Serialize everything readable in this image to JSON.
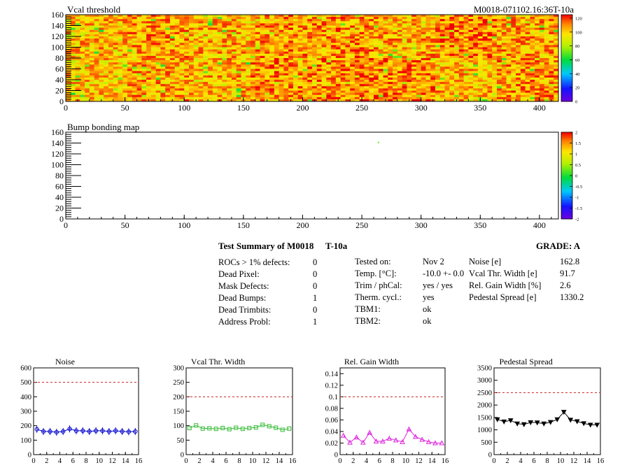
{
  "header": {
    "module_id": "M0018-071102.16:36T-10a"
  },
  "chart_data": [
    {
      "type": "heatmap",
      "title": "Vcal threshold",
      "xlim": [
        0,
        416
      ],
      "ylim": [
        0,
        160
      ],
      "x_ticks": [
        "0",
        "50",
        "100",
        "150",
        "200",
        "250",
        "300",
        "350",
        "400"
      ],
      "y_ticks": [
        "0",
        "20",
        "40",
        "60",
        "80",
        "100",
        "120",
        "140",
        "160"
      ],
      "colorbar_ticks": [
        "0",
        "20",
        "40",
        "60",
        "80",
        "100",
        "120"
      ],
      "z_range": [
        0,
        125
      ],
      "roc_grid": {
        "columns": 8,
        "rows": 2,
        "roc_width": 52,
        "roc_height": 80
      },
      "roc_mean_levels": [
        [
          101,
          106,
          104,
          109,
          110,
          112,
          104,
          107
        ],
        [
          104,
          107,
          104,
          108,
          109,
          105,
          112,
          106
        ]
      ]
    },
    {
      "type": "heatmap",
      "title": "Bump bonding map",
      "xlim": [
        0,
        416
      ],
      "ylim": [
        0,
        160
      ],
      "x_ticks": [
        "0",
        "50",
        "100",
        "150",
        "200",
        "250",
        "300",
        "350",
        "400"
      ],
      "y_ticks": [
        "0",
        "20",
        "40",
        "60",
        "80",
        "100",
        "120",
        "140",
        "160"
      ],
      "colorbar_ticks": [
        "-2",
        "-1.5",
        "-1",
        "-0.5",
        "0",
        "0.5",
        "1",
        "1.5",
        "2"
      ],
      "z_range": [
        -2,
        2
      ],
      "points": [
        {
          "x": 264,
          "y": 141,
          "z": 0.3
        }
      ]
    },
    {
      "type": "scatter",
      "title": "Noise",
      "x": [
        0.5,
        1.5,
        2.5,
        3.5,
        4.5,
        5.5,
        6.5,
        7.5,
        8.5,
        9.5,
        10.5,
        11.5,
        12.5,
        13.5,
        14.5,
        15.5
      ],
      "values": [
        175,
        160,
        160,
        155,
        160,
        178,
        165,
        165,
        160,
        165,
        165,
        160,
        165,
        160,
        158,
        160
      ],
      "xlim": [
        0,
        16
      ],
      "ylim": [
        0,
        600
      ],
      "x_ticks": [
        "0",
        "2",
        "4",
        "6",
        "8",
        "10",
        "12",
        "14",
        "16"
      ],
      "y_ticks": [
        "0",
        "100",
        "200",
        "300",
        "400",
        "500",
        "600"
      ],
      "reference_line": 500,
      "color": "#0000cc",
      "marker": "circle"
    },
    {
      "type": "line",
      "title": "Vcal Thr. Width",
      "x": [
        0.5,
        1.5,
        2.5,
        3.5,
        4.5,
        5.5,
        6.5,
        7.5,
        8.5,
        9.5,
        10.5,
        11.5,
        12.5,
        13.5,
        14.5,
        15.5
      ],
      "values": [
        92,
        101,
        90,
        91,
        89,
        92,
        88,
        93,
        89,
        92,
        94,
        103,
        98,
        93,
        86,
        90
      ],
      "xlim": [
        0,
        16
      ],
      "ylim": [
        0,
        300
      ],
      "x_ticks": [
        "0",
        "50",
        "100",
        "150",
        "200",
        "250",
        "300"
      ],
      "x_ticks_16": [
        "0",
        "2",
        "4",
        "6",
        "8",
        "10",
        "12",
        "14",
        "16"
      ],
      "y_ticks": [
        "0",
        "50",
        "100",
        "150",
        "200",
        "250",
        "300"
      ],
      "reference_line": 200,
      "color": "#33bb33",
      "marker": "square"
    },
    {
      "type": "line",
      "title": "Rel. Gain Width",
      "x": [
        0.5,
        1.5,
        2.5,
        3.5,
        4.5,
        5.5,
        6.5,
        7.5,
        8.5,
        9.5,
        10.5,
        11.5,
        12.5,
        13.5,
        14.5,
        15.5
      ],
      "values": [
        0.033,
        0.021,
        0.03,
        0.021,
        0.038,
        0.023,
        0.023,
        0.028,
        0.025,
        0.022,
        0.044,
        0.031,
        0.026,
        0.022,
        0.02,
        0.02
      ],
      "xlim": [
        0,
        16
      ],
      "ylim": [
        0,
        0.15
      ],
      "x_ticks": [
        "0",
        "2",
        "4",
        "6",
        "8",
        "10",
        "12",
        "14",
        "16"
      ],
      "y_ticks": [
        "0",
        "0.02",
        "0.04",
        "0.06",
        "0.08",
        "0.1",
        "0.12",
        "0.14"
      ],
      "reference_line": 0.1,
      "color": "#dd22dd",
      "marker": "triangle"
    },
    {
      "type": "line",
      "title": "Pedestal Spread",
      "x": [
        0.5,
        1.5,
        2.5,
        3.5,
        4.5,
        5.5,
        6.5,
        7.5,
        8.5,
        9.5,
        10.5,
        11.5,
        12.5,
        13.5,
        14.5,
        15.5
      ],
      "values": [
        1420,
        1330,
        1380,
        1250,
        1220,
        1300,
        1290,
        1250,
        1310,
        1420,
        1720,
        1400,
        1340,
        1260,
        1200,
        1200
      ],
      "xlim": [
        0,
        16
      ],
      "ylim": [
        0,
        3500
      ],
      "x_ticks": [
        "0",
        "2",
        "4",
        "6",
        "8",
        "10",
        "12",
        "14",
        "16"
      ],
      "y_ticks": [
        "0",
        "500",
        "1000",
        "1500",
        "2000",
        "2500",
        "3000",
        "3500"
      ],
      "reference_line": 2500,
      "color": "#000000",
      "marker": "triangle-down"
    }
  ],
  "summary": {
    "title": "Test Summary of M0018",
    "temp_label": "T-10a",
    "grade": "GRADE:  A",
    "defects": [
      {
        "label": "ROCs > 1% defects:",
        "value": "0"
      },
      {
        "label": "Dead Pixel:",
        "value": "0"
      },
      {
        "label": "Mask Defects:",
        "value": "0"
      },
      {
        "label": "Dead Bumps:",
        "value": "1"
      },
      {
        "label": "Dead Trimbits:",
        "value": "0"
      },
      {
        "label": "Address Probl:",
        "value": "1"
      }
    ],
    "conditions": [
      {
        "label": "Tested on:",
        "value": "Nov 2"
      },
      {
        "label": "Temp. [°C]:",
        "value": "-10.0 +- 0.0"
      },
      {
        "label": "Trim / phCal:",
        "value": "yes / yes"
      },
      {
        "label": "Therm. cycl.:",
        "value": "yes"
      },
      {
        "label": "TBM1:",
        "value": "ok"
      },
      {
        "label": "TBM2:",
        "value": "ok"
      }
    ],
    "results": [
      {
        "label": "Noise [e]",
        "value": "162.8"
      },
      {
        "label": "Vcal Thr. Width [e]",
        "value": "91.7"
      },
      {
        "label": "Rel. Gain Width [%]",
        "value": "2.6"
      },
      {
        "label": "Pedestal Spread [e]",
        "value": "1330.2"
      }
    ]
  }
}
